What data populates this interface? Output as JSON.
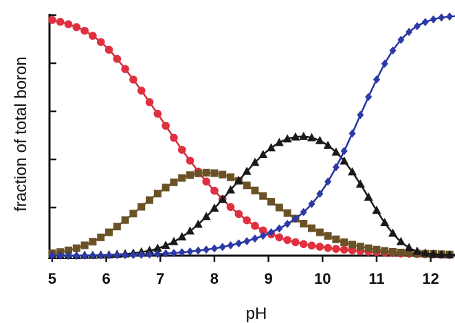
{
  "chart_data": {
    "type": "line",
    "title": "",
    "xlabel": "pH",
    "ylabel": "fraction of total boron",
    "xlim": [
      4.95,
      12.45
    ],
    "ylim": [
      0,
      1
    ],
    "xticks": [
      "5",
      "6",
      "7",
      "8",
      "9",
      "10",
      "11",
      "12"
    ],
    "yticks_count": 6,
    "grid": false,
    "x": [
      5.0,
      5.15,
      5.3,
      5.45,
      5.6,
      5.75,
      5.9,
      6.05,
      6.2,
      6.35,
      6.5,
      6.65,
      6.8,
      6.95,
      7.1,
      7.25,
      7.4,
      7.55,
      7.7,
      7.85,
      8.0,
      8.15,
      8.3,
      8.45,
      8.6,
      8.75,
      8.9,
      9.05,
      9.2,
      9.35,
      9.5,
      9.65,
      9.8,
      9.95,
      10.1,
      10.25,
      10.4,
      10.55,
      10.7,
      10.85,
      11.0,
      11.15,
      11.3,
      11.45,
      11.6,
      11.75,
      11.9,
      12.05,
      12.2,
      12.35,
      12.5
    ],
    "series": [
      {
        "color": "#e03040",
        "line_color": "#c8303c",
        "marker": "circle",
        "values": [
          0.98,
          0.972,
          0.962,
          0.95,
          0.935,
          0.914,
          0.888,
          0.856,
          0.818,
          0.776,
          0.732,
          0.686,
          0.638,
          0.59,
          0.54,
          0.49,
          0.44,
          0.395,
          0.35,
          0.308,
          0.27,
          0.235,
          0.202,
          0.173,
          0.147,
          0.124,
          0.105,
          0.089,
          0.076,
          0.065,
          0.056,
          0.048,
          0.042,
          0.037,
          0.032,
          0.028,
          0.025,
          0.022,
          0.019,
          0.017,
          0.015,
          0.013,
          0.011,
          0.009,
          0.008,
          0.007,
          0.006,
          0.005,
          0.004,
          0.003,
          0.003
        ]
      },
      {
        "color": "#6b5226",
        "line_color": "#6b5226",
        "marker": "square",
        "values": [
          0.01,
          0.015,
          0.022,
          0.031,
          0.043,
          0.058,
          0.076,
          0.097,
          0.121,
          0.148,
          0.175,
          0.203,
          0.231,
          0.258,
          0.283,
          0.305,
          0.323,
          0.335,
          0.342,
          0.345,
          0.343,
          0.337,
          0.326,
          0.311,
          0.292,
          0.271,
          0.248,
          0.224,
          0.2,
          0.177,
          0.154,
          0.133,
          0.114,
          0.097,
          0.082,
          0.068,
          0.056,
          0.046,
          0.038,
          0.031,
          0.025,
          0.02,
          0.016,
          0.013,
          0.011,
          0.009,
          0.008,
          0.007,
          0.006,
          0.005,
          0.005
        ]
      },
      {
        "color": "#1a1a1a",
        "line_color": "#1a1a1a",
        "marker": "triangle",
        "values": [
          0.0,
          0.0,
          0.0,
          0.0,
          0.001,
          0.001,
          0.002,
          0.003,
          0.005,
          0.007,
          0.01,
          0.015,
          0.021,
          0.03,
          0.042,
          0.058,
          0.078,
          0.102,
          0.13,
          0.162,
          0.197,
          0.234,
          0.273,
          0.312,
          0.35,
          0.387,
          0.42,
          0.448,
          0.47,
          0.485,
          0.493,
          0.495,
          0.49,
          0.478,
          0.458,
          0.43,
          0.393,
          0.348,
          0.297,
          0.243,
          0.188,
          0.137,
          0.093,
          0.058,
          0.033,
          0.018,
          0.01,
          0.006,
          0.004,
          0.003,
          0.003
        ]
      },
      {
        "color": "#2c3aa8",
        "line_color": "#24349c",
        "marker": "diamond",
        "values": [
          0.0,
          0.0,
          0.0,
          0.0,
          0.0,
          0.001,
          0.001,
          0.001,
          0.002,
          0.002,
          0.003,
          0.004,
          0.005,
          0.007,
          0.009,
          0.011,
          0.014,
          0.017,
          0.021,
          0.025,
          0.03,
          0.036,
          0.043,
          0.051,
          0.06,
          0.071,
          0.083,
          0.097,
          0.113,
          0.132,
          0.154,
          0.181,
          0.215,
          0.257,
          0.308,
          0.368,
          0.435,
          0.508,
          0.585,
          0.66,
          0.732,
          0.798,
          0.853,
          0.897,
          0.93,
          0.954,
          0.971,
          0.982,
          0.99,
          0.994,
          0.996
        ]
      }
    ]
  }
}
